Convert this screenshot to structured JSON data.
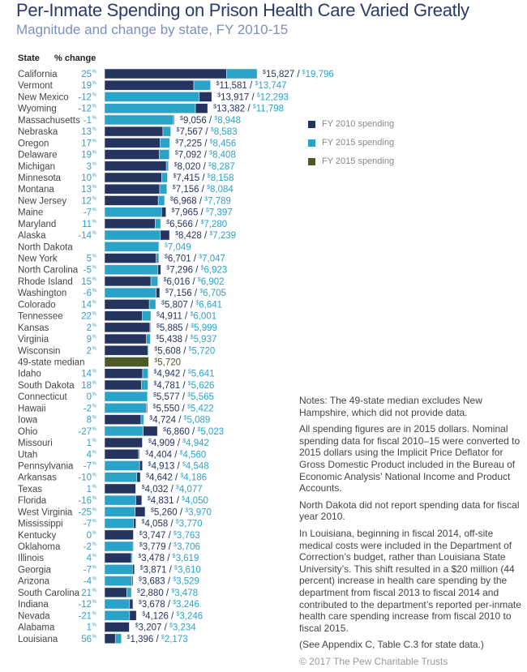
{
  "title": "Per-Inmate Spending on Prison Health Care Varied Greatly",
  "subtitle": "Magnitude and change by state, FY 2010-15",
  "colors": {
    "fy2010": "#25345f",
    "fy2015": "#2aa3c9",
    "median": "#4b5a27",
    "title": "#2a3a6b",
    "subtitle": "#7b8fc0"
  },
  "chart_data": {
    "type": "bar",
    "orientation": "horizontal",
    "column_headers": {
      "state": "State",
      "change": "% change"
    },
    "legend": [
      {
        "label": "FY 2010 spending",
        "color": "#25345f"
      },
      {
        "label": "FY 2015 spending",
        "color": "#2aa3c9"
      },
      {
        "label": "FY 2015 spending",
        "color": "#4b5a27"
      }
    ],
    "legend_placement": "right",
    "currency_symbol": "$",
    "rows": [
      {
        "state": "California",
        "change": "25",
        "fy2010": 15827,
        "fy2015": 19796
      },
      {
        "state": "Vermont",
        "change": "19",
        "fy2010": 11581,
        "fy2015": 13747
      },
      {
        "state": "New Mexico",
        "change": "-12",
        "fy2010": 13917,
        "fy2015": 12293
      },
      {
        "state": "Wyoming",
        "change": "-12",
        "fy2010": 13382,
        "fy2015": 11798
      },
      {
        "state": "Massachusetts",
        "change": "-1",
        "fy2010": 9056,
        "fy2015": 8948
      },
      {
        "state": "Nebraska",
        "change": "13",
        "fy2010": 7567,
        "fy2015": 8583
      },
      {
        "state": "Oregon",
        "change": "17",
        "fy2010": 7225,
        "fy2015": 8456
      },
      {
        "state": "Delaware",
        "change": "19",
        "fy2010": 7092,
        "fy2015": 8408
      },
      {
        "state": "Michigan",
        "change": "3",
        "fy2010": 8020,
        "fy2015": 8287
      },
      {
        "state": "Minnesota",
        "change": "10",
        "fy2010": 7415,
        "fy2015": 8158
      },
      {
        "state": "Montana",
        "change": "13",
        "fy2010": 7156,
        "fy2015": 8084
      },
      {
        "state": "New Jersey",
        "change": "12",
        "fy2010": 6968,
        "fy2015": 7789
      },
      {
        "state": "Maine",
        "change": "-7",
        "fy2010": 7965,
        "fy2015": 7397
      },
      {
        "state": "Maryland",
        "change": "11",
        "fy2010": 6566,
        "fy2015": 7280
      },
      {
        "state": "Alaska",
        "change": "-14",
        "fy2010": 8428,
        "fy2015": 7239
      },
      {
        "state": "North Dakota",
        "change": "",
        "fy2010": null,
        "fy2015": 7049
      },
      {
        "state": "New York",
        "change": "5",
        "fy2010": 6701,
        "fy2015": 7047
      },
      {
        "state": "North Carolina",
        "change": "-5",
        "fy2010": 7296,
        "fy2015": 6923
      },
      {
        "state": "Rhode Island",
        "change": "15",
        "fy2010": 6016,
        "fy2015": 6902
      },
      {
        "state": "Washington",
        "change": "-6",
        "fy2010": 7156,
        "fy2015": 6705
      },
      {
        "state": "Colorado",
        "change": "14",
        "fy2010": 5807,
        "fy2015": 6641
      },
      {
        "state": "Tennessee",
        "change": "22",
        "fy2010": 4911,
        "fy2015": 6001
      },
      {
        "state": "Kansas",
        "change": "2",
        "fy2010": 5885,
        "fy2015": 5999
      },
      {
        "state": "Virginia",
        "change": "9",
        "fy2010": 5438,
        "fy2015": 5937
      },
      {
        "state": "Wisconsin",
        "change": "2",
        "fy2010": 5608,
        "fy2015": 5720
      },
      {
        "state": "49-state median",
        "change": "",
        "fy2010": null,
        "fy2015": 5720,
        "median": true
      },
      {
        "state": "Idaho",
        "change": "14",
        "fy2010": 4942,
        "fy2015": 5641
      },
      {
        "state": "South Dakota",
        "change": "18",
        "fy2010": 4781,
        "fy2015": 5626
      },
      {
        "state": "Connecticut",
        "change": "0",
        "fy2010": 5577,
        "fy2015": 5565
      },
      {
        "state": "Hawaii",
        "change": "-2",
        "fy2010": 5550,
        "fy2015": 5422
      },
      {
        "state": "Iowa",
        "change": "8",
        "fy2010": 4724,
        "fy2015": 5089
      },
      {
        "state": "Ohio",
        "change": "-27",
        "fy2010": 6860,
        "fy2015": 5023
      },
      {
        "state": "Missouri",
        "change": "1",
        "fy2010": 4909,
        "fy2015": 4942
      },
      {
        "state": "Utah",
        "change": "4",
        "fy2010": 4404,
        "fy2015": 4560
      },
      {
        "state": "Pennsylvania",
        "change": "-7",
        "fy2010": 4913,
        "fy2015": 4548
      },
      {
        "state": "Arkansas",
        "change": "-10",
        "fy2010": 4642,
        "fy2015": 4186
      },
      {
        "state": "Texas",
        "change": "1",
        "fy2010": 4032,
        "fy2015": 4077
      },
      {
        "state": "Florida",
        "change": "-16",
        "fy2010": 4831,
        "fy2015": 4050
      },
      {
        "state": "West Virginia",
        "change": "-25",
        "fy2010": 5260,
        "fy2015": 3970
      },
      {
        "state": "Mississippi",
        "change": "-7",
        "fy2010": 4058,
        "fy2015": 3770
      },
      {
        "state": "Kentucky",
        "change": "0",
        "fy2010": 3747,
        "fy2015": 3763
      },
      {
        "state": "Oklahoma",
        "change": "-2",
        "fy2010": 3779,
        "fy2015": 3706
      },
      {
        "state": "Illinois",
        "change": "4",
        "fy2010": 3478,
        "fy2015": 3619
      },
      {
        "state": "Georgia",
        "change": "-7",
        "fy2010": 3871,
        "fy2015": 3610
      },
      {
        "state": "Arizona",
        "change": "-4",
        "fy2010": 3683,
        "fy2015": 3529
      },
      {
        "state": "South Carolina",
        "change": "21",
        "fy2010": 2880,
        "fy2015": 3478
      },
      {
        "state": "Indiana",
        "change": "-12",
        "fy2010": 3678,
        "fy2015": 3246
      },
      {
        "state": "Nevada",
        "change": "-21",
        "fy2010": 4126,
        "fy2015": 3246
      },
      {
        "state": "Alabama",
        "change": "1",
        "fy2010": 3207,
        "fy2015": 3234
      },
      {
        "state": "Louisiana",
        "change": "56",
        "fy2010": 1396,
        "fy2015": 2173
      }
    ]
  },
  "notes": [
    "Notes: The 49-state median excludes New Hampshire, which did not provide data.",
    "All spending figures are in 2015 dollars. Nominal spending data for fiscal 2010–15 were converted to 2015 dollars using the Implicit Price Deflator for Gross Domestic Product included in the Bureau of Economic Analysis’ National Income and Product Accounts.",
    "North Dakota did not report spending data for fiscal year 2010.",
    "In Louisiana, beginning in fiscal 2014, off-site medical costs were included in the Department of Correction’s budget, rather than Louisiana State University’s. This shift resulted in a $20 million (44 percent) increase in health care spending by the department from fiscal 2013 to fiscal 2014 and contributed to the department’s reported per-inmate health care spending increase from fiscal 2010 to fiscal 2015.",
    "(See Appendix C, Table C.3 for state data.)"
  ],
  "copyright": "© 2017 The Pew Charitable Trusts"
}
